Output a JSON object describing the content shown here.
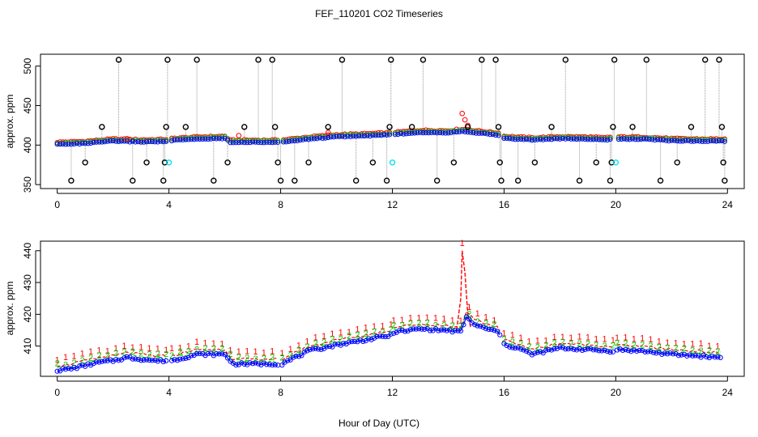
{
  "title": "FEF_110201  CO2 Timeseries",
  "xlabel": "Hour of Day (UTC)",
  "colors": {
    "red": "#ff0000",
    "green": "#00cc00",
    "blue": "#0000ff",
    "cyan": "#00e5ee",
    "black": "#000000",
    "gray": "#999999"
  },
  "chart_data": [
    {
      "type": "scatter",
      "ylabel": "approx. ppm",
      "xlim": [
        -0.6,
        24.6
      ],
      "ylim": [
        345,
        515
      ],
      "xticks": [
        "0",
        "4",
        "8",
        "12",
        "16",
        "20",
        "24"
      ],
      "yticks": [
        "350",
        "400",
        "450",
        "500"
      ],
      "baseline": [
        [
          0,
          401.5
        ],
        [
          1,
          402.5
        ],
        [
          2,
          405.5
        ],
        [
          3,
          404.5
        ],
        [
          3.9,
          405
        ],
        [
          4.2,
          406.5
        ],
        [
          5,
          408
        ],
        [
          6,
          409
        ],
        [
          6.2,
          404
        ],
        [
          7.6,
          404
        ],
        [
          8,
          404
        ],
        [
          9,
          408
        ],
        [
          10,
          411
        ],
        [
          11,
          412
        ],
        [
          11.9,
          413.5
        ],
        [
          12.1,
          414
        ],
        [
          13,
          416.5
        ],
        [
          14,
          416
        ],
        [
          14.5,
          418
        ],
        [
          15,
          416
        ],
        [
          15.8,
          413
        ],
        [
          16,
          409
        ],
        [
          17,
          407
        ],
        [
          18,
          408.5
        ],
        [
          19,
          408
        ],
        [
          19.6,
          407
        ],
        [
          19.9,
          408
        ],
        [
          21,
          408
        ],
        [
          22,
          406
        ],
        [
          23,
          405.5
        ],
        [
          23.8,
          405.5
        ]
      ],
      "black_points": [
        [
          0.5,
          355
        ],
        [
          1.0,
          378
        ],
        [
          1.6,
          423
        ],
        [
          2.2,
          508
        ],
        [
          2.7,
          355
        ],
        [
          3.2,
          378
        ],
        [
          3.8,
          355
        ],
        [
          3.85,
          378
        ],
        [
          3.9,
          423
        ],
        [
          3.95,
          508
        ],
        [
          4.6,
          423
        ],
        [
          5.0,
          508
        ],
        [
          5.6,
          355
        ],
        [
          6.1,
          378
        ],
        [
          6.7,
          423
        ],
        [
          7.2,
          508
        ],
        [
          7.7,
          508
        ],
        [
          7.8,
          423
        ],
        [
          7.9,
          378
        ],
        [
          8.0,
          355
        ],
        [
          8.5,
          355
        ],
        [
          9.0,
          378
        ],
        [
          9.7,
          423
        ],
        [
          10.2,
          508
        ],
        [
          10.7,
          355
        ],
        [
          11.3,
          378
        ],
        [
          11.8,
          355
        ],
        [
          11.9,
          423
        ],
        [
          11.95,
          508
        ],
        [
          12.7,
          423
        ],
        [
          13.1,
          508
        ],
        [
          13.6,
          355
        ],
        [
          14.2,
          378
        ],
        [
          14.7,
          423
        ],
        [
          15.2,
          508
        ],
        [
          15.7,
          508
        ],
        [
          15.8,
          423
        ],
        [
          15.85,
          378
        ],
        [
          15.9,
          355
        ],
        [
          16.5,
          355
        ],
        [
          17.1,
          378
        ],
        [
          17.7,
          423
        ],
        [
          18.2,
          508
        ],
        [
          18.7,
          355
        ],
        [
          19.3,
          378
        ],
        [
          19.8,
          355
        ],
        [
          19.85,
          378
        ],
        [
          19.9,
          423
        ],
        [
          19.95,
          508
        ],
        [
          20.6,
          423
        ],
        [
          21.1,
          508
        ],
        [
          21.6,
          355
        ],
        [
          22.2,
          378
        ],
        [
          22.7,
          423
        ],
        [
          23.2,
          508
        ],
        [
          23.7,
          508
        ],
        [
          23.8,
          423
        ],
        [
          23.85,
          378
        ],
        [
          23.9,
          355
        ]
      ],
      "cyan_points": [
        [
          4.0,
          378
        ],
        [
          12.0,
          378
        ],
        [
          20.0,
          378
        ]
      ],
      "red_peaks": [
        [
          14.5,
          440
        ],
        [
          14.6,
          432
        ],
        [
          14.7,
          425
        ],
        [
          9.7,
          416
        ],
        [
          6.5,
          412
        ],
        [
          2.5,
          408
        ]
      ]
    },
    {
      "type": "scatter",
      "ylabel": "approx. ppm",
      "xlim": [
        -0.6,
        24.6
      ],
      "ylim": [
        400.5,
        443
      ],
      "xticks": [
        "0",
        "4",
        "8",
        "12",
        "16",
        "20",
        "24"
      ],
      "yticks": [
        "410",
        "420",
        "430",
        "440"
      ],
      "series": [
        {
          "name": "1",
          "color": "red",
          "offset": 1.5
        },
        {
          "name": "2",
          "color": "green",
          "offset": 0.6
        },
        {
          "name": "3",
          "color": "blue",
          "offset": 0
        }
      ],
      "baseline": [
        [
          0,
          402
        ],
        [
          0.5,
          402.5
        ],
        [
          1,
          403.5
        ],
        [
          1.5,
          404.5
        ],
        [
          2,
          405
        ],
        [
          2.5,
          406
        ],
        [
          3,
          405.5
        ],
        [
          3.5,
          405
        ],
        [
          3.95,
          405
        ],
        [
          4.1,
          405
        ],
        [
          5,
          407
        ],
        [
          6,
          407
        ],
        [
          6.3,
          404
        ],
        [
          7,
          404
        ],
        [
          7.9,
          404
        ],
        [
          8.05,
          404
        ],
        [
          9,
          408
        ],
        [
          10,
          410
        ],
        [
          11,
          411.5
        ],
        [
          11.95,
          413
        ],
        [
          12.05,
          414
        ],
        [
          13,
          415
        ],
        [
          14,
          414.5
        ],
        [
          14.5,
          414
        ],
        [
          14.6,
          419
        ],
        [
          15,
          416
        ],
        [
          15.8,
          414
        ],
        [
          16,
          410
        ],
        [
          16.5,
          409
        ],
        [
          17,
          407
        ],
        [
          17.5,
          408
        ],
        [
          18,
          409
        ],
        [
          19,
          408.5
        ],
        [
          19.9,
          408
        ],
        [
          20.05,
          408.5
        ],
        [
          21,
          408
        ],
        [
          22,
          407
        ],
        [
          23,
          406.5
        ],
        [
          23.8,
          406
        ]
      ],
      "red_peak": [
        [
          14.3,
          415
        ],
        [
          14.45,
          425
        ],
        [
          14.5,
          440
        ],
        [
          14.6,
          433
        ],
        [
          14.7,
          420
        ],
        [
          14.8,
          416
        ]
      ]
    }
  ]
}
